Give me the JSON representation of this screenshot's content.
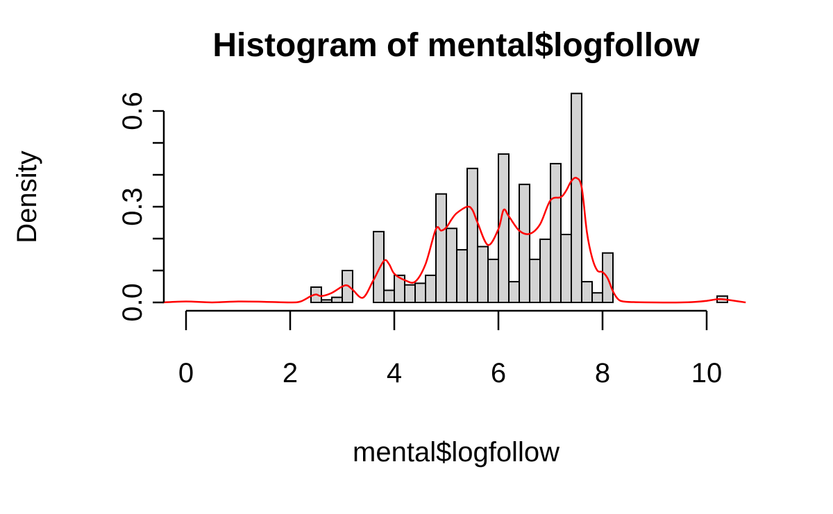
{
  "chart_data": {
    "type": "bar",
    "title": "Histogram of mental$logfollow",
    "xlabel": "mental$logfollow",
    "ylabel": "Density",
    "xlim": [
      -0.45,
      10.75
    ],
    "ylim": [
      0,
      0.66
    ],
    "x_ticks": [
      0,
      2,
      4,
      6,
      8,
      10
    ],
    "x_tick_labels": [
      "0",
      "2",
      "4",
      "6",
      "8",
      "10"
    ],
    "y_ticks": [
      0.0,
      0.1,
      0.2,
      0.3,
      0.4,
      0.5,
      0.6
    ],
    "y_tick_labels": [
      "0.0",
      "",
      "",
      "0.3",
      "",
      "",
      "0.6"
    ],
    "bin_width": 0.2,
    "bins": [
      {
        "x0": 0.0,
        "x1": 0.2,
        "density": 0.0
      },
      {
        "x0": 2.4,
        "x1": 2.6,
        "density": 0.048
      },
      {
        "x0": 2.6,
        "x1": 2.8,
        "density": 0.008
      },
      {
        "x0": 2.8,
        "x1": 3.0,
        "density": 0.016
      },
      {
        "x0": 3.0,
        "x1": 3.2,
        "density": 0.1
      },
      {
        "x0": 3.6,
        "x1": 3.8,
        "density": 0.222
      },
      {
        "x0": 3.8,
        "x1": 4.0,
        "density": 0.038
      },
      {
        "x0": 4.0,
        "x1": 4.2,
        "density": 0.085
      },
      {
        "x0": 4.2,
        "x1": 4.4,
        "density": 0.055
      },
      {
        "x0": 4.4,
        "x1": 4.6,
        "density": 0.06
      },
      {
        "x0": 4.6,
        "x1": 4.8,
        "density": 0.085
      },
      {
        "x0": 4.8,
        "x1": 5.0,
        "density": 0.34
      },
      {
        "x0": 5.0,
        "x1": 5.2,
        "density": 0.232
      },
      {
        "x0": 5.2,
        "x1": 5.4,
        "density": 0.165
      },
      {
        "x0": 5.4,
        "x1": 5.6,
        "density": 0.42
      },
      {
        "x0": 5.6,
        "x1": 5.8,
        "density": 0.175
      },
      {
        "x0": 5.8,
        "x1": 6.0,
        "density": 0.135
      },
      {
        "x0": 6.0,
        "x1": 6.2,
        "density": 0.465
      },
      {
        "x0": 6.2,
        "x1": 6.4,
        "density": 0.065
      },
      {
        "x0": 6.4,
        "x1": 6.6,
        "density": 0.37
      },
      {
        "x0": 6.6,
        "x1": 6.8,
        "density": 0.135
      },
      {
        "x0": 6.8,
        "x1": 7.0,
        "density": 0.198
      },
      {
        "x0": 7.0,
        "x1": 7.2,
        "density": 0.435
      },
      {
        "x0": 7.2,
        "x1": 7.4,
        "density": 0.213
      },
      {
        "x0": 7.4,
        "x1": 7.6,
        "density": 0.655
      },
      {
        "x0": 7.6,
        "x1": 7.8,
        "density": 0.065
      },
      {
        "x0": 7.8,
        "x1": 8.0,
        "density": 0.03
      },
      {
        "x0": 8.0,
        "x1": 8.2,
        "density": 0.155
      },
      {
        "x0": 10.2,
        "x1": 10.4,
        "density": 0.02
      }
    ],
    "density_curve": {
      "color": "#ff0000",
      "x": [
        -0.45,
        0.0,
        0.5,
        1.0,
        1.5,
        2.0,
        2.2,
        2.4,
        2.5,
        2.6,
        2.8,
        3.0,
        3.1,
        3.2,
        3.4,
        3.6,
        3.8,
        3.9,
        4.0,
        4.2,
        4.4,
        4.6,
        4.8,
        4.9,
        5.0,
        5.1,
        5.2,
        5.4,
        5.5,
        5.6,
        5.8,
        6.0,
        6.1,
        6.2,
        6.4,
        6.6,
        6.8,
        7.0,
        7.2,
        7.3,
        7.4,
        7.5,
        7.6,
        7.7,
        7.8,
        7.9,
        8.0,
        8.1,
        8.2,
        8.3,
        8.4,
        8.6,
        9.0,
        9.5,
        9.8,
        10.0,
        10.2,
        10.3,
        10.5,
        10.75
      ],
      "y": [
        0.0,
        0.003,
        0.0,
        0.003,
        0.002,
        0.0,
        0.003,
        0.02,
        0.025,
        0.02,
        0.03,
        0.05,
        0.053,
        0.04,
        0.015,
        0.07,
        0.13,
        0.12,
        0.09,
        0.07,
        0.065,
        0.12,
        0.23,
        0.225,
        0.235,
        0.26,
        0.28,
        0.3,
        0.29,
        0.25,
        0.18,
        0.23,
        0.29,
        0.27,
        0.225,
        0.215,
        0.245,
        0.32,
        0.33,
        0.35,
        0.38,
        0.39,
        0.36,
        0.22,
        0.14,
        0.1,
        0.095,
        0.075,
        0.035,
        0.01,
        0.003,
        0.001,
        0.0,
        0.0,
        0.002,
        0.005,
        0.01,
        0.01,
        0.006,
        0.0
      ]
    }
  }
}
